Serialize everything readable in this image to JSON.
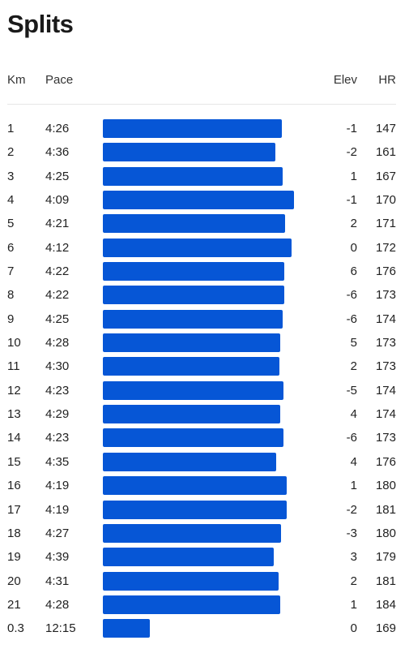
{
  "title": "Splits",
  "columns": {
    "km": "Km",
    "pace": "Pace",
    "elev": "Elev",
    "hr": "HR"
  },
  "colors": {
    "bar": "#0656d6",
    "divider": "#e6e6e6"
  },
  "splits": [
    {
      "km": "1",
      "pace": "4:26",
      "pace_seconds": 266,
      "elev": "-1",
      "hr": "147"
    },
    {
      "km": "2",
      "pace": "4:36",
      "pace_seconds": 276,
      "elev": "-2",
      "hr": "161"
    },
    {
      "km": "3",
      "pace": "4:25",
      "pace_seconds": 265,
      "elev": "1",
      "hr": "167"
    },
    {
      "km": "4",
      "pace": "4:09",
      "pace_seconds": 249,
      "elev": "-1",
      "hr": "170"
    },
    {
      "km": "5",
      "pace": "4:21",
      "pace_seconds": 261,
      "elev": "2",
      "hr": "171"
    },
    {
      "km": "6",
      "pace": "4:12",
      "pace_seconds": 252,
      "elev": "0",
      "hr": "172"
    },
    {
      "km": "7",
      "pace": "4:22",
      "pace_seconds": 262,
      "elev": "6",
      "hr": "176"
    },
    {
      "km": "8",
      "pace": "4:22",
      "pace_seconds": 262,
      "elev": "-6",
      "hr": "173"
    },
    {
      "km": "9",
      "pace": "4:25",
      "pace_seconds": 265,
      "elev": "-6",
      "hr": "174"
    },
    {
      "km": "10",
      "pace": "4:28",
      "pace_seconds": 268,
      "elev": "5",
      "hr": "173"
    },
    {
      "km": "11",
      "pace": "4:30",
      "pace_seconds": 270,
      "elev": "2",
      "hr": "173"
    },
    {
      "km": "12",
      "pace": "4:23",
      "pace_seconds": 263,
      "elev": "-5",
      "hr": "174"
    },
    {
      "km": "13",
      "pace": "4:29",
      "pace_seconds": 269,
      "elev": "4",
      "hr": "174"
    },
    {
      "km": "14",
      "pace": "4:23",
      "pace_seconds": 263,
      "elev": "-6",
      "hr": "173"
    },
    {
      "km": "15",
      "pace": "4:35",
      "pace_seconds": 275,
      "elev": "4",
      "hr": "176"
    },
    {
      "km": "16",
      "pace": "4:19",
      "pace_seconds": 259,
      "elev": "1",
      "hr": "180"
    },
    {
      "km": "17",
      "pace": "4:19",
      "pace_seconds": 259,
      "elev": "-2",
      "hr": "181"
    },
    {
      "km": "18",
      "pace": "4:27",
      "pace_seconds": 267,
      "elev": "-3",
      "hr": "180"
    },
    {
      "km": "19",
      "pace": "4:39",
      "pace_seconds": 279,
      "elev": "3",
      "hr": "179"
    },
    {
      "km": "20",
      "pace": "4:31",
      "pace_seconds": 271,
      "elev": "2",
      "hr": "181"
    },
    {
      "km": "21",
      "pace": "4:28",
      "pace_seconds": 268,
      "elev": "1",
      "hr": "184"
    },
    {
      "km": "0.3",
      "pace": "12:15",
      "pace_seconds": 735,
      "elev": "0",
      "hr": "169"
    }
  ]
}
